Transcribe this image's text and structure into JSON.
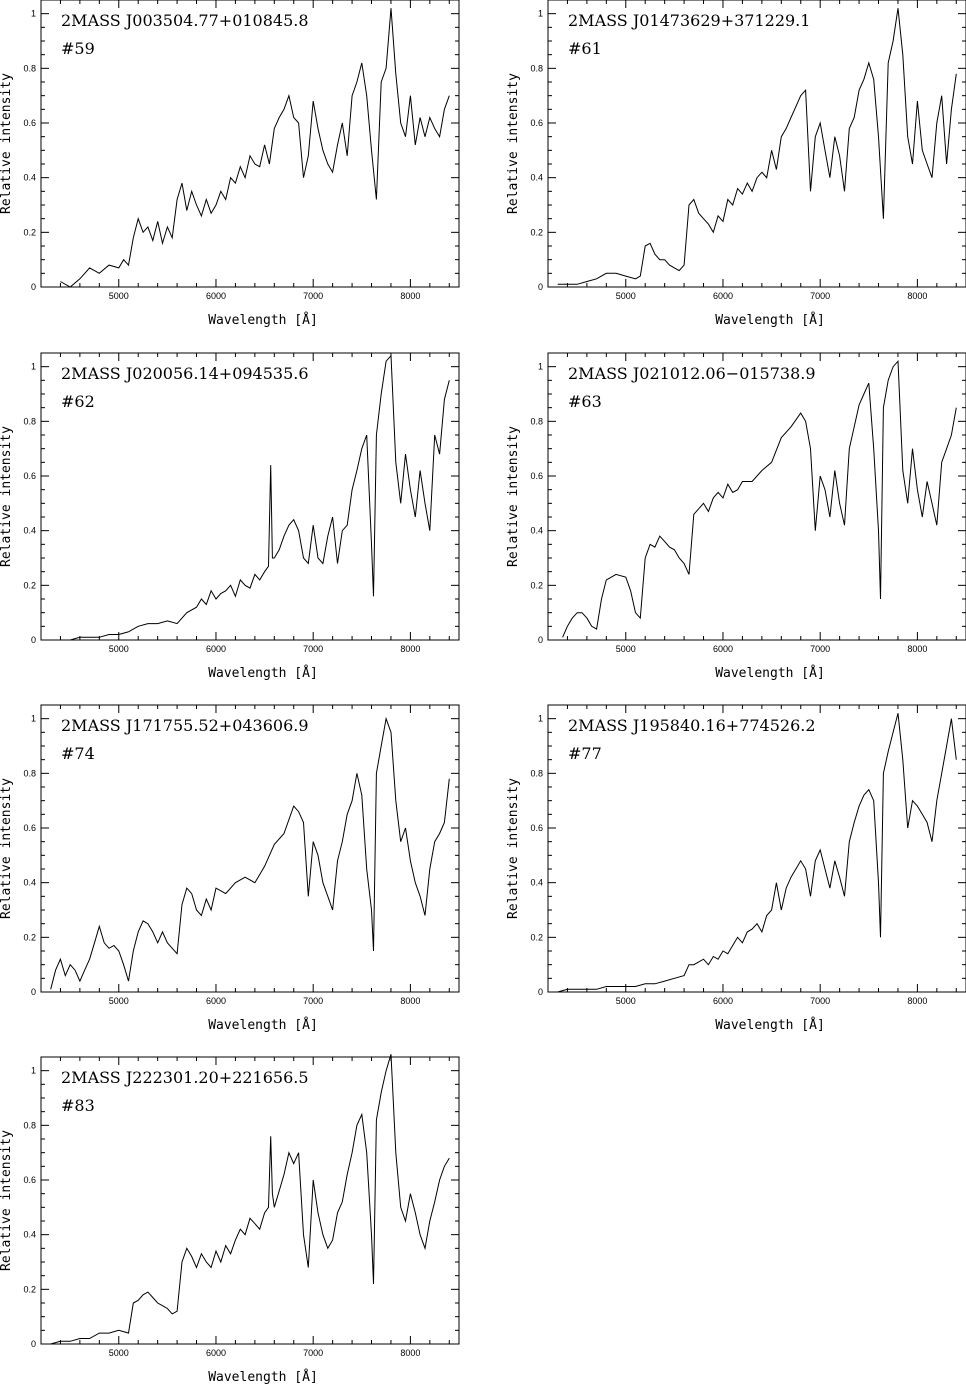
{
  "figure": {
    "xlabel": "Wavelength",
    "xunit": "[Å]",
    "ylabel": "Relative intensity"
  },
  "chart_data": [
    {
      "type": "line",
      "title": "2MASS  J003504.77+010845.8",
      "subtitle": "#59",
      "xlabel": "Wavelength   [Å]",
      "ylabel": "Relative intensity",
      "xlim": [
        4200,
        8500
      ],
      "ylim": [
        0,
        1.05
      ],
      "xticks": [
        5000,
        6000,
        7000,
        8000
      ],
      "yticks": [
        0,
        0.2,
        0.4,
        0.6,
        0.8,
        1
      ],
      "x": [
        4400,
        4500,
        4600,
        4700,
        4800,
        4900,
        5000,
        5050,
        5100,
        5150,
        5200,
        5250,
        5300,
        5350,
        5400,
        5450,
        5500,
        5550,
        5600,
        5650,
        5700,
        5750,
        5800,
        5850,
        5900,
        5950,
        6000,
        6050,
        6100,
        6150,
        6200,
        6250,
        6300,
        6350,
        6400,
        6450,
        6500,
        6550,
        6600,
        6650,
        6700,
        6750,
        6800,
        6850,
        6900,
        6950,
        7000,
        7050,
        7100,
        7150,
        7200,
        7250,
        7300,
        7350,
        7400,
        7450,
        7500,
        7550,
        7600,
        7650,
        7700,
        7750,
        7800,
        7850,
        7900,
        7950,
        8000,
        8050,
        8100,
        8150,
        8200,
        8250,
        8300,
        8350,
        8400
      ],
      "y": [
        0.02,
        0.0,
        0.03,
        0.07,
        0.05,
        0.08,
        0.07,
        0.1,
        0.08,
        0.18,
        0.25,
        0.2,
        0.22,
        0.17,
        0.24,
        0.16,
        0.22,
        0.18,
        0.32,
        0.38,
        0.28,
        0.35,
        0.3,
        0.26,
        0.32,
        0.27,
        0.3,
        0.35,
        0.32,
        0.4,
        0.38,
        0.44,
        0.4,
        0.48,
        0.45,
        0.44,
        0.52,
        0.45,
        0.58,
        0.62,
        0.65,
        0.7,
        0.62,
        0.6,
        0.4,
        0.48,
        0.68,
        0.58,
        0.5,
        0.45,
        0.42,
        0.52,
        0.6,
        0.48,
        0.7,
        0.75,
        0.82,
        0.7,
        0.5,
        0.32,
        0.75,
        0.8,
        1.02,
        0.78,
        0.6,
        0.55,
        0.7,
        0.52,
        0.62,
        0.55,
        0.62,
        0.58,
        0.55,
        0.65,
        0.7
      ]
    },
    {
      "type": "line",
      "title": "2MASS  J01473629+371229.1",
      "subtitle": "#61",
      "xlabel": "Wavelength   [Å]",
      "ylabel": "Relative intensity",
      "xlim": [
        4200,
        8500
      ],
      "ylim": [
        0,
        1.05
      ],
      "xticks": [
        5000,
        6000,
        7000,
        8000
      ],
      "yticks": [
        0,
        0.2,
        0.4,
        0.6,
        0.8,
        1
      ],
      "x": [
        4300,
        4400,
        4500,
        4600,
        4700,
        4800,
        4900,
        5000,
        5100,
        5150,
        5200,
        5250,
        5300,
        5350,
        5400,
        5450,
        5500,
        5550,
        5600,
        5650,
        5700,
        5750,
        5800,
        5850,
        5900,
        5950,
        6000,
        6050,
        6100,
        6150,
        6200,
        6250,
        6300,
        6350,
        6400,
        6450,
        6500,
        6550,
        6600,
        6650,
        6700,
        6750,
        6800,
        6850,
        6900,
        6950,
        7000,
        7050,
        7100,
        7150,
        7200,
        7250,
        7300,
        7350,
        7400,
        7450,
        7500,
        7550,
        7600,
        7650,
        7700,
        7750,
        7800,
        7850,
        7900,
        7950,
        8000,
        8050,
        8100,
        8150,
        8200,
        8250,
        8300,
        8350,
        8400
      ],
      "y": [
        0.01,
        0.01,
        0.01,
        0.02,
        0.03,
        0.05,
        0.05,
        0.04,
        0.03,
        0.04,
        0.15,
        0.16,
        0.12,
        0.1,
        0.1,
        0.08,
        0.07,
        0.06,
        0.08,
        0.3,
        0.32,
        0.27,
        0.25,
        0.23,
        0.2,
        0.26,
        0.24,
        0.32,
        0.3,
        0.36,
        0.34,
        0.38,
        0.35,
        0.4,
        0.42,
        0.4,
        0.5,
        0.43,
        0.55,
        0.58,
        0.62,
        0.66,
        0.7,
        0.72,
        0.35,
        0.55,
        0.6,
        0.5,
        0.4,
        0.55,
        0.48,
        0.35,
        0.58,
        0.62,
        0.72,
        0.76,
        0.82,
        0.76,
        0.55,
        0.25,
        0.82,
        0.9,
        1.02,
        0.85,
        0.55,
        0.45,
        0.68,
        0.5,
        0.45,
        0.4,
        0.6,
        0.7,
        0.45,
        0.65,
        0.78
      ]
    },
    {
      "type": "line",
      "title": "2MASS  J020056.14+094535.6",
      "subtitle": "#62",
      "xlabel": "Wavelength   [Å]",
      "ylabel": "Relative intensity",
      "xlim": [
        4200,
        8500
      ],
      "ylim": [
        0,
        1.05
      ],
      "xticks": [
        5000,
        6000,
        7000,
        8000
      ],
      "yticks": [
        0,
        0.2,
        0.4,
        0.6,
        0.8,
        1
      ],
      "x": [
        4400,
        4500,
        4600,
        4700,
        4800,
        4900,
        5000,
        5100,
        5200,
        5300,
        5400,
        5500,
        5600,
        5700,
        5800,
        5850,
        5900,
        5950,
        6000,
        6050,
        6100,
        6150,
        6200,
        6250,
        6300,
        6350,
        6400,
        6450,
        6500,
        6540,
        6563,
        6580,
        6600,
        6650,
        6700,
        6750,
        6800,
        6850,
        6900,
        6950,
        7000,
        7050,
        7100,
        7150,
        7200,
        7250,
        7300,
        7350,
        7400,
        7450,
        7500,
        7550,
        7600,
        7620,
        7650,
        7700,
        7750,
        7800,
        7850,
        7900,
        7950,
        8000,
        8050,
        8100,
        8150,
        8200,
        8250,
        8300,
        8350,
        8400
      ],
      "y": [
        0.0,
        0.0,
        0.01,
        0.01,
        0.01,
        0.02,
        0.02,
        0.03,
        0.05,
        0.06,
        0.06,
        0.07,
        0.06,
        0.1,
        0.12,
        0.15,
        0.13,
        0.18,
        0.15,
        0.17,
        0.18,
        0.2,
        0.16,
        0.22,
        0.2,
        0.19,
        0.24,
        0.22,
        0.25,
        0.27,
        0.64,
        0.3,
        0.3,
        0.33,
        0.38,
        0.42,
        0.44,
        0.4,
        0.3,
        0.28,
        0.42,
        0.3,
        0.28,
        0.38,
        0.45,
        0.28,
        0.4,
        0.42,
        0.55,
        0.62,
        0.7,
        0.75,
        0.35,
        0.16,
        0.75,
        0.9,
        1.02,
        1.04,
        0.65,
        0.5,
        0.68,
        0.55,
        0.45,
        0.62,
        0.5,
        0.4,
        0.75,
        0.68,
        0.88,
        0.95
      ]
    },
    {
      "type": "line",
      "title": "2MASS  J021012.06−015738.9",
      "subtitle": "#63",
      "xlabel": "Wavelength   [Å]",
      "ylabel": "Relative intensity",
      "xlim": [
        4200,
        8500
      ],
      "ylim": [
        0,
        1.05
      ],
      "xticks": [
        5000,
        6000,
        7000,
        8000
      ],
      "yticks": [
        0,
        0.2,
        0.4,
        0.6,
        0.8,
        1
      ],
      "x": [
        4350,
        4400,
        4450,
        4500,
        4550,
        4600,
        4650,
        4700,
        4750,
        4800,
        4900,
        5000,
        5050,
        5100,
        5150,
        5200,
        5250,
        5300,
        5350,
        5400,
        5450,
        5500,
        5550,
        5600,
        5650,
        5700,
        5750,
        5800,
        5850,
        5900,
        5950,
        6000,
        6050,
        6100,
        6150,
        6200,
        6300,
        6400,
        6500,
        6600,
        6700,
        6800,
        6850,
        6900,
        6950,
        7000,
        7050,
        7100,
        7150,
        7200,
        7250,
        7300,
        7350,
        7400,
        7450,
        7500,
        7550,
        7600,
        7620,
        7650,
        7700,
        7750,
        7800,
        7850,
        7900,
        7950,
        8000,
        8050,
        8100,
        8150,
        8200,
        8250,
        8300,
        8350,
        8400
      ],
      "y": [
        0.01,
        0.05,
        0.08,
        0.1,
        0.1,
        0.08,
        0.05,
        0.04,
        0.15,
        0.22,
        0.24,
        0.23,
        0.18,
        0.1,
        0.08,
        0.3,
        0.35,
        0.34,
        0.38,
        0.36,
        0.34,
        0.33,
        0.3,
        0.28,
        0.24,
        0.46,
        0.48,
        0.5,
        0.47,
        0.52,
        0.54,
        0.52,
        0.57,
        0.54,
        0.55,
        0.58,
        0.58,
        0.62,
        0.65,
        0.74,
        0.78,
        0.83,
        0.8,
        0.7,
        0.4,
        0.6,
        0.55,
        0.45,
        0.62,
        0.5,
        0.42,
        0.7,
        0.78,
        0.86,
        0.9,
        0.94,
        0.7,
        0.4,
        0.15,
        0.85,
        0.95,
        1.0,
        1.02,
        0.62,
        0.5,
        0.7,
        0.55,
        0.45,
        0.58,
        0.5,
        0.42,
        0.65,
        0.7,
        0.75,
        0.85
      ]
    },
    {
      "type": "line",
      "title": "2MASS  J171755.52+043606.9",
      "subtitle": "#74",
      "xlabel": "Wavelength   [Å]",
      "ylabel": "Relative intensity",
      "xlim": [
        4200,
        8500
      ],
      "ylim": [
        0,
        1.05
      ],
      "xticks": [
        5000,
        6000,
        7000,
        8000
      ],
      "yticks": [
        0,
        0.2,
        0.4,
        0.6,
        0.8,
        1
      ],
      "x": [
        4300,
        4350,
        4400,
        4450,
        4500,
        4550,
        4600,
        4650,
        4700,
        4750,
        4800,
        4850,
        4900,
        4950,
        5000,
        5050,
        5100,
        5150,
        5200,
        5250,
        5300,
        5350,
        5400,
        5450,
        5500,
        5550,
        5600,
        5650,
        5700,
        5750,
        5800,
        5850,
        5900,
        5950,
        6000,
        6100,
        6200,
        6300,
        6400,
        6500,
        6600,
        6700,
        6800,
        6850,
        6900,
        6950,
        7000,
        7050,
        7100,
        7150,
        7200,
        7250,
        7300,
        7350,
        7400,
        7450,
        7500,
        7550,
        7600,
        7620,
        7650,
        7700,
        7750,
        7800,
        7850,
        7900,
        7950,
        8000,
        8050,
        8100,
        8150,
        8200,
        8250,
        8300,
        8350,
        8400
      ],
      "y": [
        0.01,
        0.08,
        0.12,
        0.06,
        0.1,
        0.08,
        0.04,
        0.08,
        0.12,
        0.18,
        0.24,
        0.18,
        0.16,
        0.17,
        0.15,
        0.1,
        0.04,
        0.15,
        0.22,
        0.26,
        0.25,
        0.22,
        0.18,
        0.22,
        0.18,
        0.16,
        0.14,
        0.32,
        0.38,
        0.36,
        0.3,
        0.28,
        0.34,
        0.3,
        0.38,
        0.36,
        0.4,
        0.42,
        0.4,
        0.46,
        0.54,
        0.58,
        0.68,
        0.66,
        0.62,
        0.35,
        0.55,
        0.5,
        0.4,
        0.35,
        0.3,
        0.48,
        0.55,
        0.65,
        0.7,
        0.8,
        0.72,
        0.45,
        0.3,
        0.15,
        0.8,
        0.9,
        1.0,
        0.95,
        0.7,
        0.55,
        0.6,
        0.48,
        0.4,
        0.35,
        0.28,
        0.45,
        0.55,
        0.58,
        0.62,
        0.78
      ]
    },
    {
      "type": "line",
      "title": "2MASS  J195840.16+774526.2",
      "subtitle": "#77",
      "xlabel": "Wavelength   [Å]",
      "ylabel": "Relative intensity",
      "xlim": [
        4200,
        8500
      ],
      "ylim": [
        0,
        1.05
      ],
      "xticks": [
        5000,
        6000,
        7000,
        8000
      ],
      "yticks": [
        0,
        0.2,
        0.4,
        0.6,
        0.8,
        1
      ],
      "x": [
        4300,
        4400,
        4500,
        4600,
        4700,
        4800,
        4900,
        5000,
        5100,
        5200,
        5300,
        5400,
        5500,
        5600,
        5650,
        5700,
        5750,
        5800,
        5850,
        5900,
        5950,
        6000,
        6050,
        6100,
        6150,
        6200,
        6250,
        6300,
        6350,
        6400,
        6450,
        6500,
        6550,
        6600,
        6650,
        6700,
        6750,
        6800,
        6850,
        6900,
        6950,
        7000,
        7050,
        7100,
        7150,
        7200,
        7250,
        7300,
        7350,
        7400,
        7450,
        7500,
        7550,
        7600,
        7620,
        7650,
        7700,
        7750,
        7800,
        7850,
        7900,
        7950,
        8000,
        8050,
        8100,
        8150,
        8200,
        8250,
        8300,
        8350,
        8400
      ],
      "y": [
        0.0,
        0.01,
        0.01,
        0.01,
        0.01,
        0.02,
        0.02,
        0.02,
        0.02,
        0.03,
        0.03,
        0.04,
        0.05,
        0.06,
        0.1,
        0.1,
        0.11,
        0.12,
        0.1,
        0.13,
        0.12,
        0.15,
        0.14,
        0.17,
        0.2,
        0.18,
        0.22,
        0.23,
        0.25,
        0.22,
        0.28,
        0.3,
        0.4,
        0.3,
        0.38,
        0.42,
        0.45,
        0.48,
        0.45,
        0.35,
        0.48,
        0.52,
        0.45,
        0.38,
        0.48,
        0.42,
        0.35,
        0.55,
        0.62,
        0.68,
        0.72,
        0.74,
        0.7,
        0.4,
        0.2,
        0.8,
        0.88,
        0.95,
        1.02,
        0.85,
        0.6,
        0.7,
        0.68,
        0.65,
        0.62,
        0.55,
        0.7,
        0.8,
        0.9,
        1.0,
        0.85
      ]
    },
    {
      "type": "line",
      "title": "2MASS  J222301.20+221656.5",
      "subtitle": "#83",
      "xlabel": "Wavelength   [Å]",
      "ylabel": "Relative intensity",
      "xlim": [
        4200,
        8500
      ],
      "ylim": [
        0,
        1.05
      ],
      "xticks": [
        5000,
        6000,
        7000,
        8000
      ],
      "yticks": [
        0,
        0.2,
        0.4,
        0.6,
        0.8,
        1
      ],
      "x": [
        4300,
        4400,
        4500,
        4600,
        4700,
        4800,
        4900,
        5000,
        5100,
        5150,
        5200,
        5250,
        5300,
        5350,
        5400,
        5450,
        5500,
        5550,
        5600,
        5650,
        5700,
        5750,
        5800,
        5850,
        5900,
        5950,
        6000,
        6050,
        6100,
        6150,
        6200,
        6250,
        6300,
        6350,
        6400,
        6450,
        6500,
        6540,
        6563,
        6580,
        6600,
        6650,
        6700,
        6750,
        6800,
        6850,
        6900,
        6950,
        7000,
        7050,
        7100,
        7150,
        7200,
        7250,
        7300,
        7350,
        7400,
        7450,
        7500,
        7550,
        7600,
        7620,
        7650,
        7700,
        7750,
        7800,
        7850,
        7900,
        7950,
        8000,
        8050,
        8100,
        8150,
        8200,
        8250,
        8300,
        8350,
        8400
      ],
      "y": [
        0.0,
        0.01,
        0.01,
        0.02,
        0.02,
        0.04,
        0.04,
        0.05,
        0.04,
        0.15,
        0.16,
        0.18,
        0.19,
        0.17,
        0.15,
        0.14,
        0.13,
        0.11,
        0.12,
        0.3,
        0.35,
        0.32,
        0.28,
        0.33,
        0.3,
        0.28,
        0.34,
        0.3,
        0.36,
        0.33,
        0.38,
        0.42,
        0.4,
        0.46,
        0.44,
        0.42,
        0.48,
        0.5,
        0.76,
        0.55,
        0.5,
        0.56,
        0.62,
        0.7,
        0.66,
        0.7,
        0.4,
        0.28,
        0.6,
        0.48,
        0.4,
        0.35,
        0.38,
        0.48,
        0.52,
        0.62,
        0.7,
        0.8,
        0.84,
        0.7,
        0.4,
        0.22,
        0.82,
        0.92,
        1.0,
        1.06,
        0.7,
        0.5,
        0.45,
        0.55,
        0.48,
        0.4,
        0.35,
        0.45,
        0.52,
        0.6,
        0.65,
        0.68
      ]
    }
  ]
}
